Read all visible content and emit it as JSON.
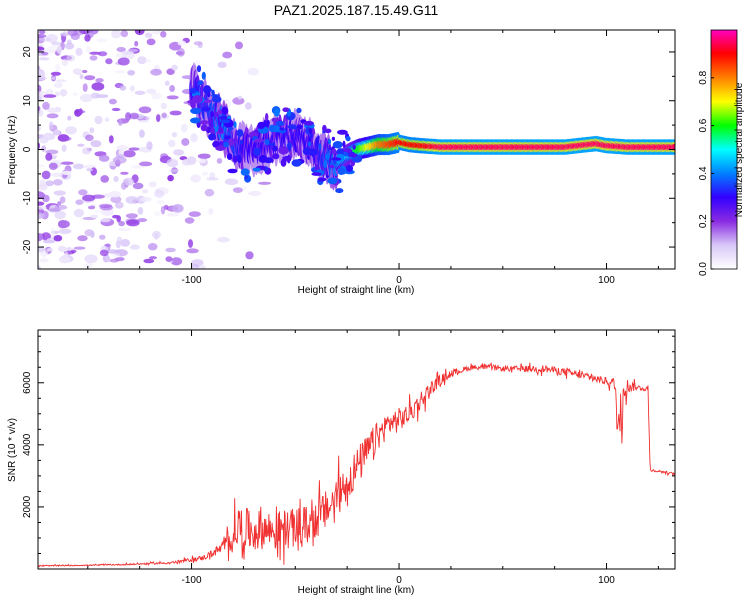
{
  "title": "PAZ1.2025.187.15.49.G11",
  "chart_data": [
    {
      "type": "heatmap",
      "xlabel": "Height of straight line (km)",
      "ylabel": "Frequency (Hz)",
      "xlim": [
        -174,
        133
      ],
      "ylim": [
        -24.5,
        24.5
      ],
      "xticks": [
        -100,
        0,
        100
      ],
      "yticks": [
        -20,
        -10,
        0,
        10,
        20
      ],
      "colorbar": {
        "label": "Normalized spectral amplitude",
        "range": [
          0.0,
          1.0
        ],
        "ticks": [
          0.0,
          0.2,
          0.4,
          0.6,
          0.8
        ],
        "colormap": [
          "#ffffff",
          "#d8c8f8",
          "#8a2be2",
          "#3300ff",
          "#0080ff",
          "#00ffff",
          "#00ff00",
          "#ffff00",
          "#ff8000",
          "#ff0000",
          "#ff00c0"
        ]
      },
      "ridge_centerline_x": [
        -100,
        -90,
        -85,
        -80,
        -75,
        -70,
        -65,
        -60,
        -55,
        -50,
        -45,
        -40,
        -35,
        -30,
        -25,
        -20,
        -15,
        -10,
        -5,
        0,
        5,
        10,
        20,
        40,
        60,
        80,
        95,
        100,
        110,
        120,
        133
      ],
      "ridge_centerline_y": [
        13,
        7,
        5,
        1,
        0,
        0,
        1,
        2,
        3,
        3,
        2,
        0,
        -2,
        -3,
        -1,
        0,
        0.5,
        1,
        1,
        1.5,
        1,
        0.8,
        0.5,
        0.5,
        0.5,
        0.5,
        1.2,
        0.8,
        0.5,
        0.5,
        0.5
      ],
      "ridge_peak_amplitude": [
        0.3,
        0.35,
        0.4,
        0.35,
        0.3,
        0.3,
        0.3,
        0.3,
        0.3,
        0.3,
        0.3,
        0.3,
        0.35,
        0.4,
        0.5,
        0.6,
        0.7,
        0.8,
        0.85,
        0.9,
        0.9,
        0.9,
        0.95,
        0.95,
        0.95,
        0.95,
        0.95,
        0.95,
        0.95,
        0.95,
        0.95
      ]
    },
    {
      "type": "line",
      "xlabel": "Height of straight line (km)",
      "ylabel": "SNR (10 * v/v)",
      "xlim": [
        -174,
        133
      ],
      "ylim": [
        0,
        7700
      ],
      "xticks": [
        -100,
        0,
        100
      ],
      "yticks": [
        2000,
        4000,
        6000
      ],
      "color": "#f03030",
      "x": [
        -174,
        -150,
        -130,
        -110,
        -95,
        -90,
        -85,
        -80,
        -78,
        -75,
        -70,
        -65,
        -60,
        -55,
        -50,
        -45,
        -40,
        -35,
        -30,
        -25,
        -20,
        -15,
        -10,
        -5,
        0,
        5,
        10,
        15,
        20,
        25,
        30,
        35,
        40,
        45,
        50,
        60,
        70,
        80,
        90,
        100,
        104,
        106,
        108,
        110,
        115,
        120,
        121,
        125,
        130,
        133
      ],
      "y": [
        100,
        120,
        150,
        200,
        350,
        500,
        700,
        1000,
        1400,
        1300,
        1200,
        1300,
        1200,
        1300,
        1300,
        1400,
        1600,
        1900,
        2300,
        2800,
        3300,
        3800,
        4300,
        4700,
        4800,
        5000,
        5400,
        5800,
        6100,
        6300,
        6400,
        6500,
        6500,
        6500,
        6450,
        6450,
        6450,
        6350,
        6200,
        6050,
        5950,
        4200,
        6000,
        5900,
        5850,
        5800,
        3200,
        3150,
        3100,
        3050
      ],
      "noise_amplitude": [
        20,
        20,
        30,
        40,
        100,
        150,
        250,
        600,
        900,
        900,
        800,
        800,
        800,
        800,
        800,
        800,
        800,
        800,
        800,
        800,
        800,
        700,
        600,
        500,
        500,
        400,
        400,
        300,
        200,
        150,
        120,
        100,
        100,
        100,
        100,
        120,
        150,
        150,
        150,
        150,
        300,
        1200,
        800,
        300,
        100,
        100,
        50,
        50,
        50,
        50
      ]
    }
  ]
}
